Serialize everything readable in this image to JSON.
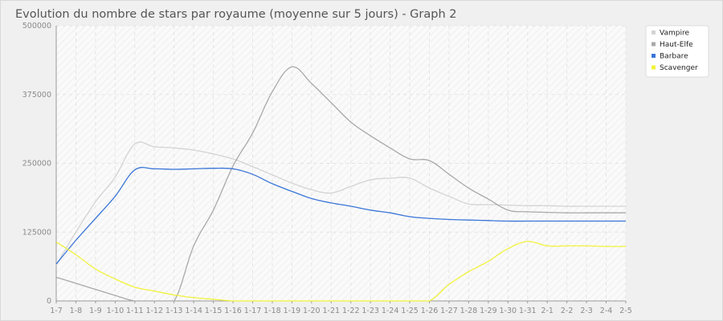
{
  "chart_data": {
    "type": "line",
    "title": "Evolution du nombre de stars par royaume (moyenne sur 5 jours) - Graph 2",
    "xlabel": "",
    "ylabel": "",
    "ylim": [
      0,
      500000
    ],
    "yticks": [
      "0",
      "125000",
      "250000",
      "375000",
      "500000"
    ],
    "grid": true,
    "legend_position": "top-right",
    "categories": [
      "1-7",
      "1-8",
      "1-9",
      "1-10",
      "1-11",
      "1-12",
      "1-13",
      "1-14",
      "1-15",
      "1-16",
      "1-17",
      "1-18",
      "1-19",
      "1-20",
      "1-21",
      "1-22",
      "1-23",
      "1-24",
      "1-25",
      "1-26",
      "1-27",
      "1-28",
      "1-29",
      "1-30",
      "1-31",
      "2-1",
      "2-2",
      "2-3",
      "2-4",
      "2-5"
    ],
    "series": [
      {
        "name": "Vampire",
        "color": "#d3d3d3",
        "values": [
          65000,
          125000,
          180000,
          225000,
          285000,
          280000,
          278000,
          274000,
          267000,
          258000,
          244000,
          229000,
          214000,
          202000,
          196000,
          208000,
          220000,
          223000,
          223000,
          205000,
          190000,
          176000,
          175000,
          174000,
          173000,
          173000,
          172000,
          172000,
          172000,
          172000
        ]
      },
      {
        "name": "Haut-Elfe",
        "color": "#a9a9a9",
        "values": [
          43000,
          32000,
          21000,
          10000,
          0,
          0,
          0,
          100000,
          165000,
          245000,
          305000,
          380000,
          425000,
          395000,
          360000,
          325000,
          300000,
          278000,
          258000,
          255000,
          230000,
          205000,
          185000,
          165000,
          162000,
          161000,
          160000,
          160000,
          160000,
          160000
        ]
      },
      {
        "name": "Barbare",
        "color": "#3a75d8",
        "values": [
          67000,
          110000,
          150000,
          190000,
          238000,
          240000,
          239000,
          240000,
          241000,
          240000,
          230000,
          213000,
          199000,
          186000,
          178000,
          172000,
          165000,
          160000,
          153000,
          150000,
          148000,
          147000,
          146000,
          145000,
          145000,
          145000,
          145000,
          145000,
          145000,
          145000
        ]
      },
      {
        "name": "Scavenger",
        "color": "#f2f23c",
        "values": [
          107000,
          84000,
          58000,
          40000,
          25000,
          18000,
          11000,
          6000,
          3000,
          0,
          0,
          0,
          0,
          0,
          0,
          0,
          0,
          0,
          0,
          0,
          30000,
          53000,
          72000,
          95000,
          108000,
          100000,
          100000,
          100000,
          99000,
          99000
        ]
      }
    ]
  }
}
